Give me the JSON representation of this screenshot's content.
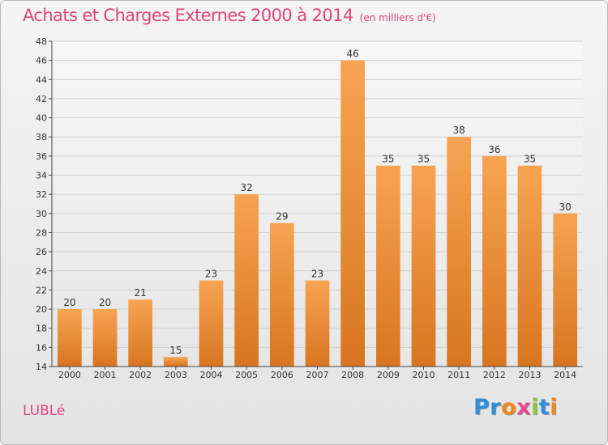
{
  "header": {
    "title": "Achats et Charges Externes 2000 à 2014",
    "subtitle": "(en milliers d'€)"
  },
  "footer": {
    "commune": "LUBLé",
    "logo": [
      {
        "ch": "P",
        "color": "#2f8fd8"
      },
      {
        "ch": "r",
        "color": "#2f8fd8"
      },
      {
        "ch": "o",
        "color": "#f0891c"
      },
      {
        "ch": "x",
        "color": "#e84a8b"
      },
      {
        "ch": "i",
        "color": "#8cc63f"
      },
      {
        "ch": "t",
        "color": "#2f8fd8"
      },
      {
        "ch": "i",
        "color": "#f0891c"
      }
    ]
  },
  "colors": {
    "title": "#e0457b",
    "bar_light": "#f7a452",
    "bar_dark": "#d87520",
    "grid": "#d0d0d0",
    "axis": "#444444"
  },
  "chart_data": {
    "type": "bar",
    "title": "Achats et Charges Externes 2000 à 2014",
    "subtitle": "(en milliers d'€)",
    "xlabel": "",
    "ylabel": "",
    "categories": [
      "2000",
      "2001",
      "2002",
      "2003",
      "2004",
      "2005",
      "2006",
      "2007",
      "2008",
      "2009",
      "2010",
      "2011",
      "2012",
      "2013",
      "2014"
    ],
    "values": [
      20,
      20,
      21,
      15,
      23,
      32,
      29,
      23,
      46,
      35,
      35,
      38,
      36,
      35,
      30
    ],
    "ylim": [
      14,
      48
    ],
    "yticks": [
      14,
      16,
      18,
      20,
      22,
      24,
      26,
      28,
      30,
      32,
      34,
      36,
      38,
      40,
      42,
      44,
      46,
      48
    ],
    "grid": true,
    "data_labels": true
  }
}
